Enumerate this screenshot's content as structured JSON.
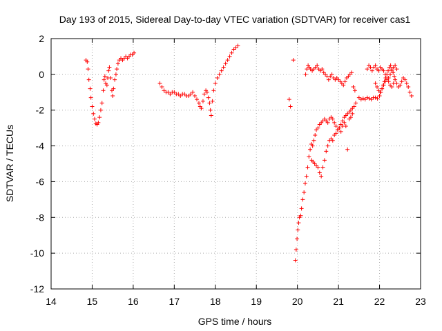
{
  "chart_data": {
    "type": "scatter",
    "title": "Day 193 of 2015, Sidereal Day-to-day VTEC variation (SDTVAR) for receiver cas1",
    "xlabel": "GPS time / hours",
    "ylabel": "SDTVAR / TECUs",
    "xlim": [
      14,
      23
    ],
    "ylim": [
      -12,
      2
    ],
    "xticks": [
      "14",
      "15",
      "16",
      "17",
      "18",
      "19",
      "20",
      "21",
      "22",
      "23"
    ],
    "yticks": [
      "2",
      "0",
      "-2",
      "-4",
      "-6",
      "-8",
      "-10",
      "-12"
    ],
    "grid": true,
    "marker": "+",
    "color": "#ff0000",
    "series": [
      {
        "name": "cas1",
        "segments": [
          [
            [
              14.85,
              0.8
            ],
            [
              14.88,
              0.7
            ],
            [
              14.9,
              0.3
            ],
            [
              14.92,
              -0.3
            ],
            [
              14.95,
              -0.8
            ],
            [
              14.97,
              -1.3
            ],
            [
              15.0,
              -1.8
            ],
            [
              15.03,
              -2.2
            ],
            [
              15.06,
              -2.5
            ],
            [
              15.09,
              -2.75
            ],
            [
              15.12,
              -2.8
            ],
            [
              15.15,
              -2.7
            ],
            [
              15.18,
              -2.4
            ],
            [
              15.21,
              -2.0
            ],
            [
              15.24,
              -1.6
            ],
            [
              15.27,
              -0.9
            ],
            [
              15.29,
              -0.3
            ],
            [
              15.31,
              -0.1
            ],
            [
              15.33,
              -0.5
            ],
            [
              15.36,
              -0.6
            ],
            [
              15.38,
              -0.2
            ],
            [
              15.4,
              0.2
            ],
            [
              15.42,
              0.4
            ],
            [
              15.45,
              -0.2
            ],
            [
              15.48,
              -0.9
            ],
            [
              15.5,
              -1.2
            ],
            [
              15.52,
              -0.8
            ],
            [
              15.55,
              -0.3
            ],
            [
              15.58,
              0.0
            ],
            [
              15.6,
              0.3
            ],
            [
              15.63,
              0.6
            ],
            [
              15.66,
              0.8
            ],
            [
              15.7,
              0.9
            ],
            [
              15.74,
              0.8
            ],
            [
              15.78,
              0.9
            ],
            [
              15.82,
              1.0
            ],
            [
              15.86,
              0.9
            ],
            [
              15.9,
              1.0
            ],
            [
              15.94,
              1.1
            ],
            [
              15.98,
              1.1
            ],
            [
              16.02,
              1.2
            ]
          ],
          [
            [
              16.65,
              -0.5
            ],
            [
              16.7,
              -0.7
            ],
            [
              16.75,
              -0.9
            ],
            [
              16.8,
              -1.0
            ],
            [
              16.85,
              -1.0
            ],
            [
              16.9,
              -1.1
            ],
            [
              16.95,
              -1.0
            ],
            [
              17.0,
              -1.0
            ],
            [
              17.05,
              -1.1
            ],
            [
              17.1,
              -1.1
            ],
            [
              17.15,
              -1.2
            ],
            [
              17.2,
              -1.1
            ],
            [
              17.25,
              -1.1
            ],
            [
              17.3,
              -1.2
            ],
            [
              17.35,
              -1.2
            ],
            [
              17.4,
              -1.1
            ],
            [
              17.45,
              -1.0
            ],
            [
              17.5,
              -1.2
            ],
            [
              17.55,
              -1.4
            ],
            [
              17.6,
              -1.6
            ],
            [
              17.63,
              -1.8
            ],
            [
              17.66,
              -1.9
            ],
            [
              17.7,
              -1.5
            ],
            [
              17.73,
              -1.1
            ],
            [
              17.77,
              -0.9
            ],
            [
              17.8,
              -1.0
            ],
            [
              17.83,
              -1.3
            ],
            [
              17.86,
              -1.6
            ],
            [
              17.88,
              -2.0
            ],
            [
              17.9,
              -2.3
            ],
            [
              17.93,
              -1.5
            ],
            [
              17.96,
              -0.9
            ],
            [
              18.0,
              -0.5
            ],
            [
              18.05,
              -0.2
            ],
            [
              18.1,
              0.0
            ],
            [
              18.15,
              0.2
            ],
            [
              18.2,
              0.4
            ],
            [
              18.25,
              0.6
            ],
            [
              18.3,
              0.8
            ],
            [
              18.35,
              1.0
            ],
            [
              18.4,
              1.2
            ],
            [
              18.45,
              1.4
            ],
            [
              18.5,
              1.5
            ],
            [
              18.55,
              1.6
            ]
          ],
          [
            [
              19.8,
              -1.4
            ],
            [
              19.83,
              -1.8
            ],
            [
              19.9,
              0.8
            ]
          ],
          [
            [
              19.95,
              -10.4
            ],
            [
              19.97,
              -9.8
            ],
            [
              19.99,
              -9.2
            ],
            [
              20.01,
              -8.7
            ],
            [
              20.03,
              -8.3
            ],
            [
              20.05,
              -8.0
            ],
            [
              20.08,
              -7.9
            ],
            [
              20.1,
              -7.5
            ],
            [
              20.13,
              -7.0
            ],
            [
              20.16,
              -6.6
            ],
            [
              20.19,
              -6.1
            ],
            [
              20.22,
              -5.7
            ],
            [
              20.25,
              -5.2
            ],
            [
              20.28,
              -4.6
            ],
            [
              20.31,
              -4.2
            ],
            [
              20.34,
              -3.9
            ],
            [
              20.37,
              -4.0
            ],
            [
              20.4,
              -3.7
            ],
            [
              20.43,
              -3.4
            ],
            [
              20.46,
              -3.1
            ],
            [
              20.5,
              -3.0
            ],
            [
              20.54,
              -2.8
            ],
            [
              20.58,
              -2.7
            ],
            [
              20.62,
              -2.6
            ],
            [
              20.66,
              -2.5
            ],
            [
              20.7,
              -2.6
            ],
            [
              20.74,
              -2.7
            ],
            [
              20.78,
              -2.5
            ],
            [
              20.82,
              -2.4
            ],
            [
              20.86,
              -2.5
            ],
            [
              20.9,
              -2.7
            ],
            [
              20.94,
              -2.9
            ],
            [
              20.98,
              -3.1
            ],
            [
              21.02,
              -3.0
            ],
            [
              21.06,
              -2.8
            ],
            [
              21.1,
              -2.6
            ],
            [
              21.14,
              -2.4
            ],
            [
              21.18,
              -2.3
            ],
            [
              21.22,
              -2.2
            ],
            [
              21.26,
              -2.1
            ],
            [
              21.3,
              -2.0
            ],
            [
              21.34,
              -1.9
            ],
            [
              21.38,
              -1.8
            ],
            [
              21.42,
              -1.6
            ]
          ],
          [
            [
              20.35,
              -4.8
            ],
            [
              20.38,
              -4.9
            ],
            [
              20.42,
              -5.0
            ],
            [
              20.46,
              -5.1
            ],
            [
              20.5,
              -5.2
            ],
            [
              20.54,
              -5.5
            ],
            [
              20.58,
              -5.7
            ],
            [
              20.62,
              -5.2
            ],
            [
              20.66,
              -4.8
            ],
            [
              20.7,
              -4.3
            ],
            [
              20.74,
              -4.0
            ],
            [
              20.78,
              -3.7
            ],
            [
              20.82,
              -3.6
            ],
            [
              20.86,
              -3.7
            ],
            [
              20.9,
              -3.4
            ],
            [
              20.94,
              -3.3
            ],
            [
              20.98,
              -3.1
            ],
            [
              21.02,
              -3.0
            ],
            [
              21.06,
              -3.2
            ],
            [
              21.1,
              -2.9
            ],
            [
              21.14,
              -2.7
            ],
            [
              21.18,
              -2.9
            ],
            [
              21.22,
              -4.2
            ],
            [
              21.26,
              -2.5
            ],
            [
              21.3,
              -2.4
            ],
            [
              21.34,
              -2.2
            ]
          ],
          [
            [
              20.2,
              0.0
            ],
            [
              20.23,
              0.3
            ],
            [
              20.26,
              0.5
            ],
            [
              20.29,
              0.4
            ],
            [
              20.32,
              0.3
            ],
            [
              20.36,
              0.2
            ],
            [
              20.4,
              0.3
            ],
            [
              20.44,
              0.4
            ],
            [
              20.48,
              0.5
            ],
            [
              20.52,
              0.3
            ],
            [
              20.56,
              0.2
            ],
            [
              20.6,
              0.3
            ],
            [
              20.64,
              0.1
            ],
            [
              20.68,
              0.0
            ],
            [
              20.72,
              -0.1
            ],
            [
              20.76,
              -0.3
            ],
            [
              20.8,
              -0.1
            ],
            [
              20.84,
              0.0
            ],
            [
              20.88,
              -0.2
            ],
            [
              20.92,
              -0.3
            ],
            [
              20.96,
              -0.2
            ],
            [
              21.0,
              -0.3
            ],
            [
              21.04,
              -0.4
            ],
            [
              21.08,
              -0.5
            ],
            [
              21.12,
              -0.6
            ],
            [
              21.16,
              -0.4
            ],
            [
              21.2,
              -0.2
            ],
            [
              21.24,
              -0.1
            ],
            [
              21.28,
              0.0
            ],
            [
              21.32,
              0.1
            ],
            [
              21.36,
              -0.7
            ],
            [
              21.4,
              -0.9
            ]
          ],
          [
            [
              21.5,
              -1.3
            ],
            [
              21.55,
              -1.4
            ],
            [
              21.6,
              -1.35
            ],
            [
              21.65,
              -1.4
            ],
            [
              21.7,
              -1.3
            ],
            [
              21.75,
              -1.35
            ],
            [
              21.8,
              -1.4
            ],
            [
              21.85,
              -1.3
            ],
            [
              21.9,
              -1.3
            ],
            [
              21.95,
              -1.35
            ],
            [
              22.0,
              -1.2
            ],
            [
              22.03,
              -1.0
            ],
            [
              22.06,
              -0.8
            ],
            [
              22.09,
              -0.6
            ],
            [
              22.12,
              -0.4
            ],
            [
              22.15,
              -0.2
            ],
            [
              22.18,
              0.0
            ],
            [
              22.21,
              0.2
            ],
            [
              22.24,
              0.4
            ],
            [
              22.27,
              0.5
            ],
            [
              22.3,
              0.3
            ],
            [
              22.33,
              0.1
            ],
            [
              22.36,
              -0.1
            ]
          ],
          [
            [
              21.7,
              0.3
            ],
            [
              21.74,
              0.5
            ],
            [
              21.78,
              0.4
            ],
            [
              21.82,
              0.2
            ],
            [
              21.86,
              0.4
            ],
            [
              21.9,
              0.5
            ],
            [
              21.94,
              0.3
            ],
            [
              21.98,
              0.2
            ],
            [
              22.02,
              0.4
            ],
            [
              22.06,
              0.3
            ],
            [
              22.1,
              0.2
            ],
            [
              22.14,
              0.0
            ],
            [
              22.18,
              -0.2
            ],
            [
              22.22,
              -0.4
            ],
            [
              22.26,
              -0.6
            ],
            [
              22.3,
              -0.7
            ],
            [
              22.34,
              -0.5
            ],
            [
              22.38,
              -0.3
            ],
            [
              22.42,
              -0.5
            ],
            [
              22.46,
              -0.7
            ],
            [
              22.5,
              -0.6
            ],
            [
              22.54,
              -0.4
            ],
            [
              22.58,
              -0.2
            ],
            [
              22.62,
              -0.3
            ],
            [
              22.66,
              -0.5
            ],
            [
              22.7,
              -0.7
            ],
            [
              22.74,
              -1.0
            ],
            [
              22.78,
              -1.2
            ]
          ],
          [
            [
              21.9,
              -0.5
            ],
            [
              21.94,
              -0.7
            ],
            [
              21.98,
              -0.9
            ],
            [
              22.02,
              -1.0
            ],
            [
              22.06,
              -0.8
            ],
            [
              22.1,
              -0.6
            ],
            [
              22.14,
              -0.4
            ],
            [
              22.18,
              -0.3
            ],
            [
              22.22,
              -0.2
            ],
            [
              22.26,
              0.0
            ],
            [
              22.3,
              0.2
            ],
            [
              22.34,
              0.4
            ],
            [
              22.38,
              0.5
            ],
            [
              22.42,
              0.3
            ]
          ]
        ]
      }
    ]
  }
}
